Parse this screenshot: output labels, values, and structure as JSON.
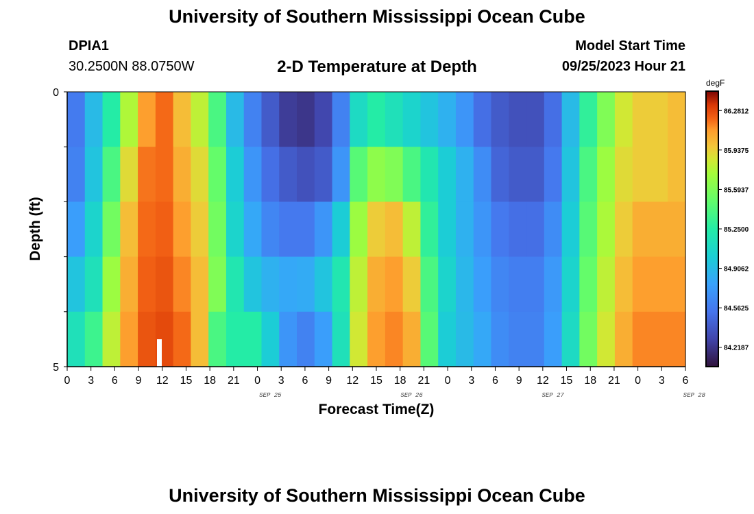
{
  "header": {
    "title": "University of Southern Mississippi Ocean Cube",
    "station_id": "DPIA1",
    "station_coords": "30.2500N  88.0750W",
    "plot_title": "2-D Temperature at Depth",
    "start_label": "Model Start Time",
    "start_value": "09/25/2023 Hour 21"
  },
  "footer": {
    "title": "University of Southern Mississippi Ocean Cube"
  },
  "chart_data": {
    "type": "heatmap",
    "title": "2-D Temperature at Depth",
    "xlabel": "Forecast Time(Z)",
    "ylabel": "Depth (ft)",
    "y_ticks": [
      "0",
      "5"
    ],
    "ylim": [
      0,
      5
    ],
    "x_tick_labels": [
      "0",
      "3",
      "6",
      "9",
      "12",
      "15",
      "18",
      "21",
      "0",
      "3",
      "6",
      "9",
      "12",
      "15",
      "18",
      "21",
      "0",
      "3",
      "6",
      "9",
      "12",
      "15",
      "18",
      "21",
      "0",
      "3",
      "6"
    ],
    "date_labels": [
      {
        "text": "SEP 25",
        "x_index": 11
      },
      {
        "text": "SEP 26",
        "x_index": 19
      },
      {
        "text": "SEP 27",
        "x_index": 27
      },
      {
        "text": "SEP 28",
        "x_index": 35
      }
    ],
    "x_hours": [
      0,
      3,
      6,
      9,
      12,
      15,
      18,
      21,
      24,
      27,
      30,
      33,
      36,
      39,
      42,
      45,
      48,
      51,
      54,
      57,
      60,
      63,
      66,
      69,
      72,
      75,
      78
    ],
    "depth_bands": [
      0,
      1,
      2,
      3,
      4,
      5
    ],
    "temperatures_degF": [
      [
        84.56,
        84.9,
        85.25,
        85.76,
        86.1,
        86.2,
        86.0,
        85.8,
        85.4,
        84.9,
        84.6,
        84.4,
        84.25,
        84.22,
        84.3,
        84.6,
        85.1,
        85.25,
        85.15,
        85.05,
        84.95,
        84.85,
        84.7,
        84.5,
        84.4,
        84.35,
        84.35,
        84.5,
        84.9,
        85.3,
        85.6,
        85.85,
        85.95,
        85.95,
        86.0
      ],
      [
        84.6,
        84.95,
        85.4,
        85.9,
        86.18,
        86.2,
        86.05,
        85.9,
        85.5,
        85.0,
        84.7,
        84.5,
        84.4,
        84.35,
        84.4,
        84.7,
        85.45,
        85.65,
        85.6,
        85.4,
        85.2,
        85.0,
        84.85,
        84.65,
        84.45,
        84.4,
        84.4,
        84.55,
        84.95,
        85.4,
        85.7,
        85.9,
        85.95,
        85.95,
        86.0
      ],
      [
        84.75,
        85.05,
        85.55,
        86.0,
        86.2,
        86.22,
        86.1,
        85.95,
        85.55,
        85.05,
        84.8,
        84.62,
        84.55,
        84.55,
        84.7,
        85.0,
        85.7,
        85.95,
        86.0,
        85.8,
        85.3,
        85.0,
        84.85,
        84.7,
        84.55,
        84.5,
        84.5,
        84.65,
        85.0,
        85.45,
        85.75,
        85.95,
        86.05,
        86.05,
        86.05
      ],
      [
        84.95,
        85.15,
        85.7,
        86.05,
        86.22,
        86.25,
        86.15,
        86.0,
        85.6,
        85.2,
        84.95,
        84.85,
        84.8,
        84.82,
        84.95,
        85.2,
        85.8,
        86.05,
        86.1,
        85.95,
        85.4,
        85.05,
        84.88,
        84.75,
        84.62,
        84.58,
        84.58,
        84.72,
        85.05,
        85.5,
        85.8,
        86.0,
        86.1,
        86.1,
        86.1
      ],
      [
        85.15,
        85.35,
        85.8,
        86.1,
        86.25,
        86.28,
        86.2,
        86.0,
        85.4,
        85.25,
        85.25,
        85.0,
        84.7,
        84.6,
        84.75,
        85.15,
        85.85,
        86.1,
        86.15,
        86.05,
        85.45,
        85.0,
        84.9,
        84.8,
        84.65,
        84.6,
        84.6,
        84.75,
        85.1,
        85.55,
        85.85,
        86.05,
        86.15,
        86.15,
        86.15
      ]
    ],
    "colorbar": {
      "unit": "degF",
      "ticks": [
        "86.2812",
        "85.9375",
        "85.5937",
        "85.2500",
        "84.9062",
        "84.5625",
        "84.2187"
      ],
      "range": [
        84.05,
        86.45
      ]
    }
  }
}
